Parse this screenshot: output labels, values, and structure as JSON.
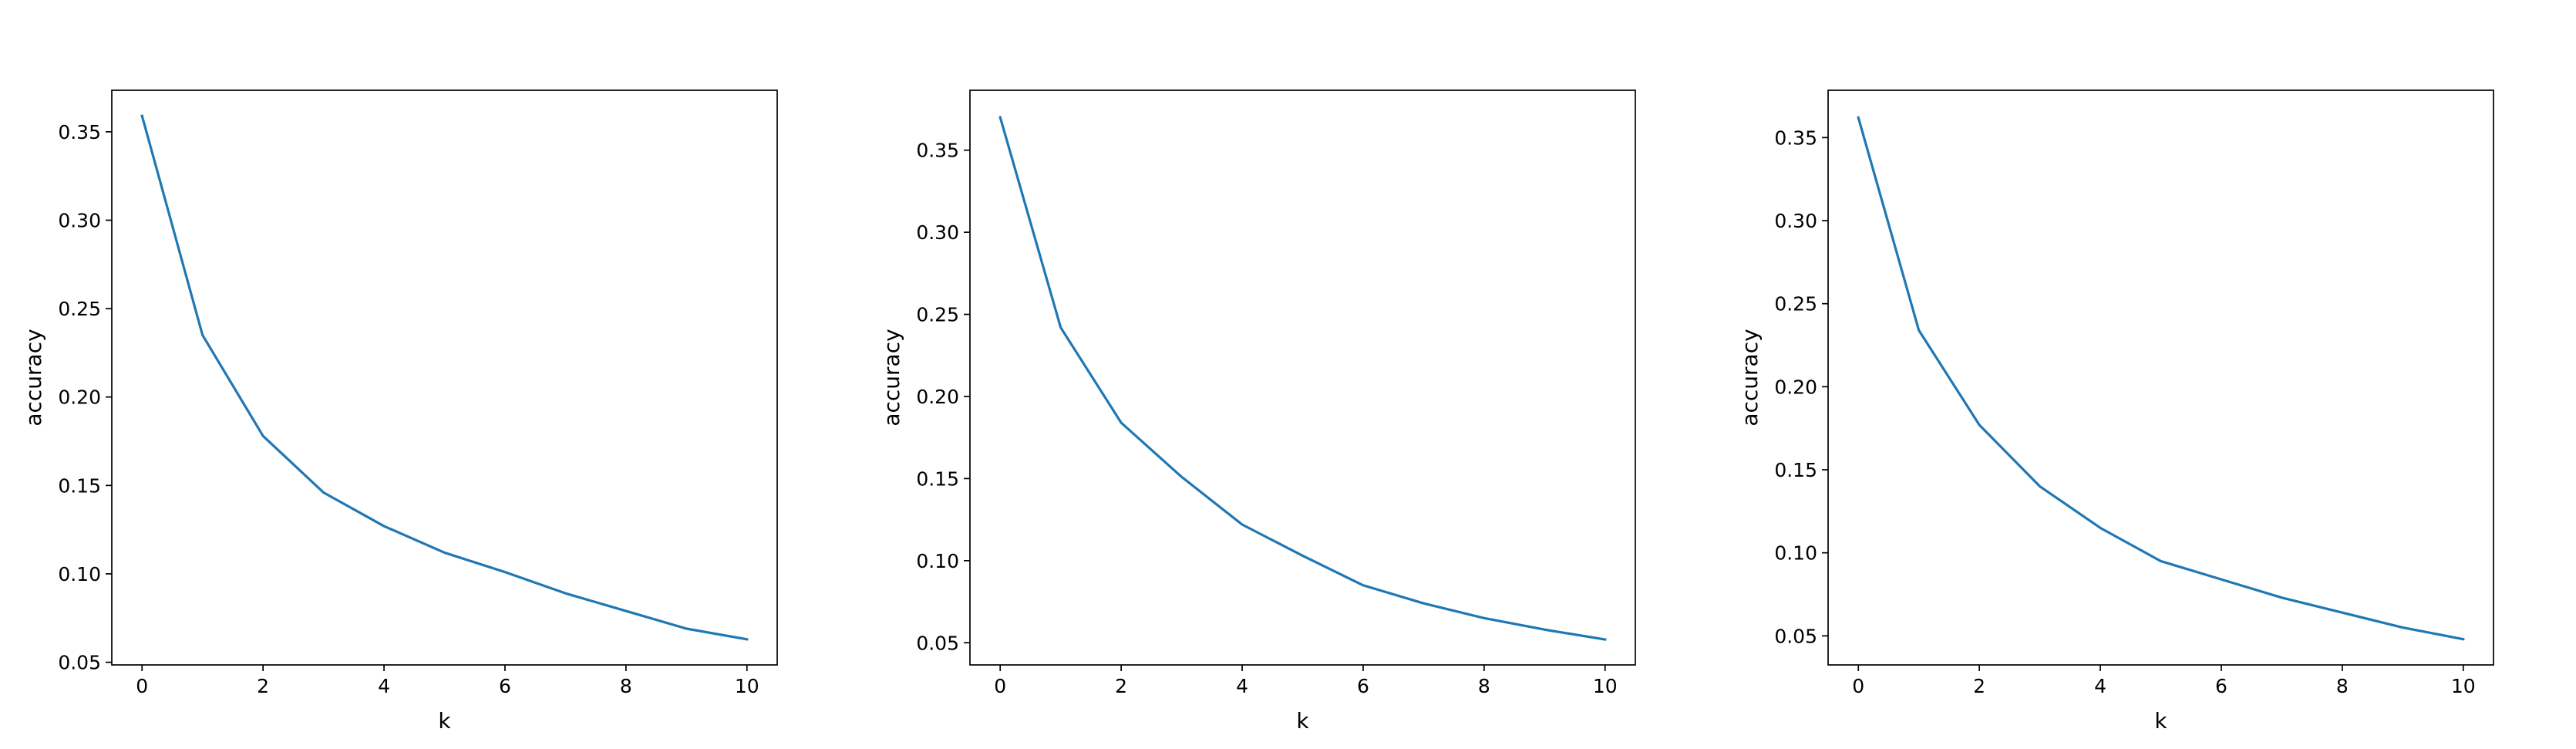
{
  "chart_data": [
    {
      "type": "line",
      "xlabel": "k",
      "ylabel": "accuracy",
      "xlim": [
        -0.5,
        10.5
      ],
      "ylim": [
        0.0485,
        0.3735
      ],
      "xticks": [
        0,
        2,
        4,
        6,
        8,
        10
      ],
      "xtick_labels": [
        "0",
        "2",
        "4",
        "6",
        "8",
        "10"
      ],
      "yticks": [
        0.05,
        0.1,
        0.15,
        0.2,
        0.25,
        0.3,
        0.35
      ],
      "ytick_labels": [
        "0.05",
        "0.10",
        "0.15",
        "0.20",
        "0.25",
        "0.30",
        "0.35"
      ],
      "grid": false,
      "series": [
        {
          "color": "#1f77b4",
          "x": [
            0,
            1,
            2,
            3,
            4,
            5,
            6,
            7,
            8,
            9,
            10
          ],
          "y": [
            0.359,
            0.235,
            0.178,
            0.146,
            0.127,
            0.112,
            0.101,
            0.089,
            0.079,
            0.069,
            0.063
          ]
        }
      ]
    },
    {
      "type": "line",
      "xlabel": "k",
      "ylabel": "accuracy",
      "xlim": [
        -0.5,
        10.5
      ],
      "ylim": [
        0.0365,
        0.3865
      ],
      "xticks": [
        0,
        2,
        4,
        6,
        8,
        10
      ],
      "xtick_labels": [
        "0",
        "2",
        "4",
        "6",
        "8",
        "10"
      ],
      "yticks": [
        0.05,
        0.1,
        0.15,
        0.2,
        0.25,
        0.3,
        0.35
      ],
      "ytick_labels": [
        "0.05",
        "0.10",
        "0.15",
        "0.20",
        "0.25",
        "0.30",
        "0.35"
      ],
      "grid": false,
      "series": [
        {
          "color": "#1f77b4",
          "x": [
            0,
            1,
            2,
            3,
            4,
            5,
            6,
            7,
            8,
            9,
            10
          ],
          "y": [
            0.37,
            0.242,
            0.184,
            0.151,
            0.122,
            0.103,
            0.085,
            0.074,
            0.065,
            0.058,
            0.052
          ]
        }
      ]
    },
    {
      "type": "line",
      "xlabel": "k",
      "ylabel": "accuracy",
      "xlim": [
        -0.5,
        10.5
      ],
      "ylim": [
        0.0325,
        0.3785
      ],
      "xticks": [
        0,
        2,
        4,
        6,
        8,
        10
      ],
      "xtick_labels": [
        "0",
        "2",
        "4",
        "6",
        "8",
        "10"
      ],
      "yticks": [
        0.05,
        0.1,
        0.15,
        0.2,
        0.25,
        0.3,
        0.35
      ],
      "ytick_labels": [
        "0.05",
        "0.10",
        "0.15",
        "0.20",
        "0.25",
        "0.30",
        "0.35"
      ],
      "grid": false,
      "series": [
        {
          "color": "#1f77b4",
          "x": [
            0,
            1,
            2,
            3,
            4,
            5,
            6,
            7,
            8,
            9,
            10
          ],
          "y": [
            0.362,
            0.234,
            0.177,
            0.14,
            0.115,
            0.095,
            0.084,
            0.073,
            0.064,
            0.055,
            0.048
          ]
        }
      ]
    }
  ]
}
